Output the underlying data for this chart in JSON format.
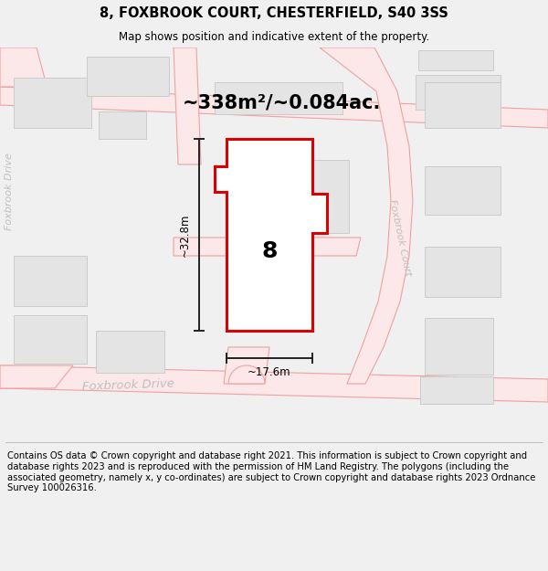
{
  "title": "8, FOXBROOK COURT, CHESTERFIELD, S40 3SS",
  "subtitle": "Map shows position and indicative extent of the property.",
  "area_text": "~338m²/~0.084ac.",
  "width_text": "~17.6m",
  "height_text": "~32.8m",
  "property_number": "8",
  "footer_text": "Contains OS data © Crown copyright and database right 2021. This information is subject to Crown copyright and database rights 2023 and is reproduced with the permission of HM Land Registry. The polygons (including the associated geometry, namely x, y co-ordinates) are subject to Crown copyright and database rights 2023 Ordnance Survey 100026316.",
  "bg_color": "#f0f0f0",
  "map_bg": "#ffffff",
  "road_line_color": "#f0a0a0",
  "road_fill_color": "#fce8e8",
  "bld_fill": "#e4e4e4",
  "bld_edge": "#cccccc",
  "prop_fill": "#ffffff",
  "prop_edge": "#dd0000",
  "road_label_color": "#c0c0c0",
  "dim_color": "#222222",
  "title_fs": 10.5,
  "sub_fs": 8.5,
  "area_fs": 15,
  "footer_fs": 7.2,
  "prop_num_fs": 18,
  "road_label_fs": 9.5,
  "small_label_fs": 8.0
}
